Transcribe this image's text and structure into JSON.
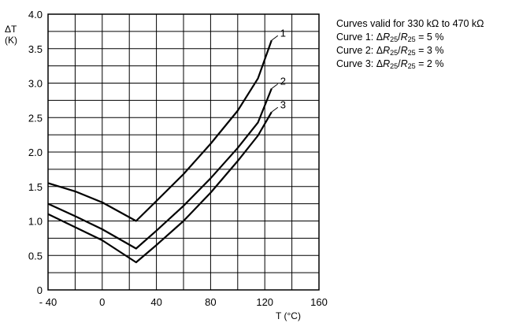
{
  "chart_data": {
    "type": "line",
    "title": "",
    "xlabel": "T (°C)",
    "ylabel": "ΔT",
    "ylabel_unit": "(K)",
    "xlim": [
      -40,
      160
    ],
    "ylim": [
      0,
      4.0
    ],
    "x_ticks": [
      -40,
      0,
      40,
      80,
      120,
      160
    ],
    "x_tick_labels": [
      "- 40",
      "0",
      "40",
      "80",
      "120",
      "160"
    ],
    "y_ticks": [
      0,
      0.5,
      1.0,
      1.5,
      2.0,
      2.5,
      3.0,
      3.5,
      4.0
    ],
    "y_tick_labels": [
      "0",
      "0.5",
      "1.0",
      "1.5",
      "2.0",
      "2.5",
      "3.0",
      "3.5",
      "4.0"
    ],
    "grid": true,
    "grid_minor_x_step": 20,
    "grid_minor_y_step": 0.25,
    "series": [
      {
        "name": "1",
        "points": [
          [
            -40,
            1.55
          ],
          [
            -20,
            1.43
          ],
          [
            0,
            1.27
          ],
          [
            25,
            1.0
          ],
          [
            40,
            1.29
          ],
          [
            60,
            1.68
          ],
          [
            80,
            2.12
          ],
          [
            100,
            2.6
          ],
          [
            115,
            3.07
          ],
          [
            125,
            3.62
          ]
        ]
      },
      {
        "name": "2",
        "points": [
          [
            -40,
            1.25
          ],
          [
            -20,
            1.07
          ],
          [
            0,
            0.88
          ],
          [
            25,
            0.6
          ],
          [
            40,
            0.86
          ],
          [
            60,
            1.22
          ],
          [
            80,
            1.62
          ],
          [
            100,
            2.06
          ],
          [
            115,
            2.43
          ],
          [
            125,
            2.92
          ]
        ]
      },
      {
        "name": "3",
        "points": [
          [
            -40,
            1.1
          ],
          [
            -20,
            0.91
          ],
          [
            0,
            0.72
          ],
          [
            25,
            0.4
          ],
          [
            40,
            0.65
          ],
          [
            60,
            1.0
          ],
          [
            80,
            1.41
          ],
          [
            100,
            1.87
          ],
          [
            115,
            2.24
          ],
          [
            125,
            2.58
          ]
        ]
      }
    ]
  },
  "notes": {
    "valid_range": "Curves valid for 330 kΩ to 470 kΩ",
    "items": [
      {
        "prefix": "Curve 1: Δ",
        "sym": "R",
        "sub": "25",
        "op": "/",
        "sym2": "R",
        "sub2": "25",
        "value": " = 5 %"
      },
      {
        "prefix": "Curve 2: Δ",
        "sym": "R",
        "sub": "25",
        "op": "/",
        "sym2": "R",
        "sub2": "25",
        "value": " = 3 %"
      },
      {
        "prefix": "Curve 3: Δ",
        "sym": "R",
        "sub": "25",
        "op": "/",
        "sym2": "R",
        "sub2": "25",
        "value": " = 2 %"
      }
    ]
  }
}
